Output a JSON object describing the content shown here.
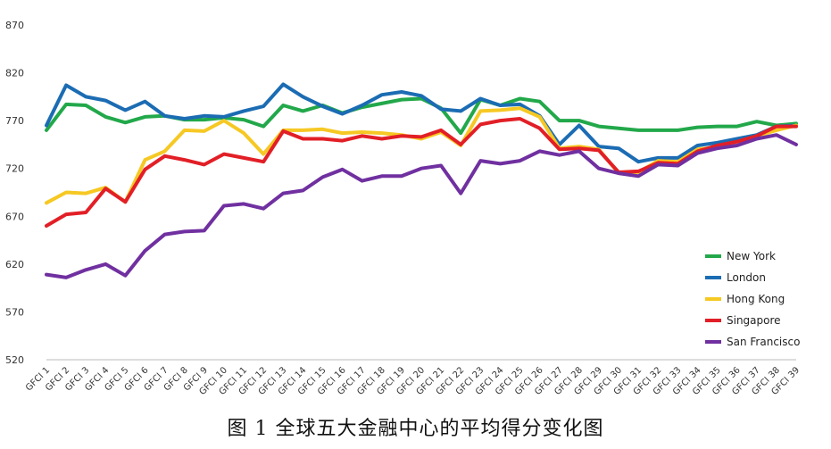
{
  "caption": "图 1 全球五大金融中心的平均得分变化图",
  "chart_data": {
    "type": "line",
    "title": "图 1 全球五大金融中心的平均得分变化图",
    "xlabel": "",
    "ylabel": "",
    "ylim": [
      520,
      870
    ],
    "yticks": [
      520,
      570,
      620,
      670,
      720,
      770,
      820,
      870
    ],
    "grid": false,
    "legend_position": "right",
    "categories": [
      "GFCI 1",
      "GFCI 2",
      "GFCI 3",
      "GFCI 4",
      "GFCI 5",
      "GFCI 6",
      "GFCI 7",
      "GFCI 8",
      "GFCI 9",
      "GFCI 10",
      "GFCI 11",
      "GFCI 12",
      "GFCI 13",
      "GFCI 14",
      "GFCI 15",
      "GFCI 16",
      "GFCI 17",
      "GFCI 18",
      "GFCI 19",
      "GFCI 20",
      "GFCI 21",
      "GFCI 22",
      "GFCI 23",
      "GFCI 24",
      "GFCI 25",
      "GFCI 26",
      "GFCI 27",
      "GFCI 28",
      "GFCI 29",
      "GFCI 30",
      "GFCI 31",
      "GFCI 32",
      "GFCI 33",
      "GFCI 34",
      "GFCI 35",
      "GFCI 36",
      "GFCI 37",
      "GFCI 38",
      "GFCI 39"
    ],
    "series": [
      {
        "name": "New York",
        "color": "#22a84a",
        "values": [
          760,
          787,
          786,
          774,
          768,
          774,
          775,
          771,
          771,
          773,
          771,
          764,
          786,
          780,
          786,
          778,
          784,
          788,
          792,
          793,
          783,
          757,
          792,
          786,
          793,
          790,
          770,
          770,
          764,
          762,
          760,
          760,
          760,
          763,
          764,
          764,
          769,
          765,
          767
        ]
      },
      {
        "name": "London",
        "color": "#1b6cb3",
        "values": [
          765,
          807,
          795,
          791,
          781,
          790,
          775,
          772,
          775,
          774,
          780,
          785,
          808,
          795,
          785,
          777,
          786,
          797,
          800,
          796,
          782,
          780,
          793,
          786,
          787,
          775,
          745,
          765,
          743,
          741,
          727,
          731,
          731,
          744,
          747,
          751,
          755,
          764,
          765
        ]
      },
      {
        "name": "Hong Kong",
        "color": "#f6c823",
        "values": [
          684,
          695,
          694,
          700,
          685,
          729,
          738,
          760,
          759,
          770,
          757,
          735,
          760,
          760,
          761,
          757,
          758,
          757,
          755,
          751,
          758,
          744,
          780,
          781,
          783,
          774,
          741,
          743,
          740,
          715,
          716,
          728,
          727,
          740,
          742,
          746,
          754,
          760,
          765
        ]
      },
      {
        "name": "Singapore",
        "color": "#e21f26",
        "values": [
          660,
          672,
          674,
          699,
          685,
          719,
          733,
          729,
          724,
          735,
          731,
          727,
          759,
          751,
          751,
          749,
          754,
          751,
          754,
          753,
          760,
          745,
          766,
          770,
          772,
          762,
          740,
          741,
          739,
          716,
          717,
          726,
          725,
          738,
          744,
          748,
          754,
          764,
          764
        ]
      },
      {
        "name": "San Francisco",
        "color": "#7030a0",
        "values": [
          609,
          606,
          614,
          620,
          608,
          634,
          651,
          654,
          655,
          681,
          683,
          678,
          694,
          697,
          711,
          719,
          707,
          712,
          712,
          720,
          723,
          694,
          728,
          725,
          728,
          738,
          734,
          738,
          720,
          715,
          712,
          724,
          723,
          736,
          741,
          744,
          751,
          755,
          745
        ]
      }
    ]
  }
}
